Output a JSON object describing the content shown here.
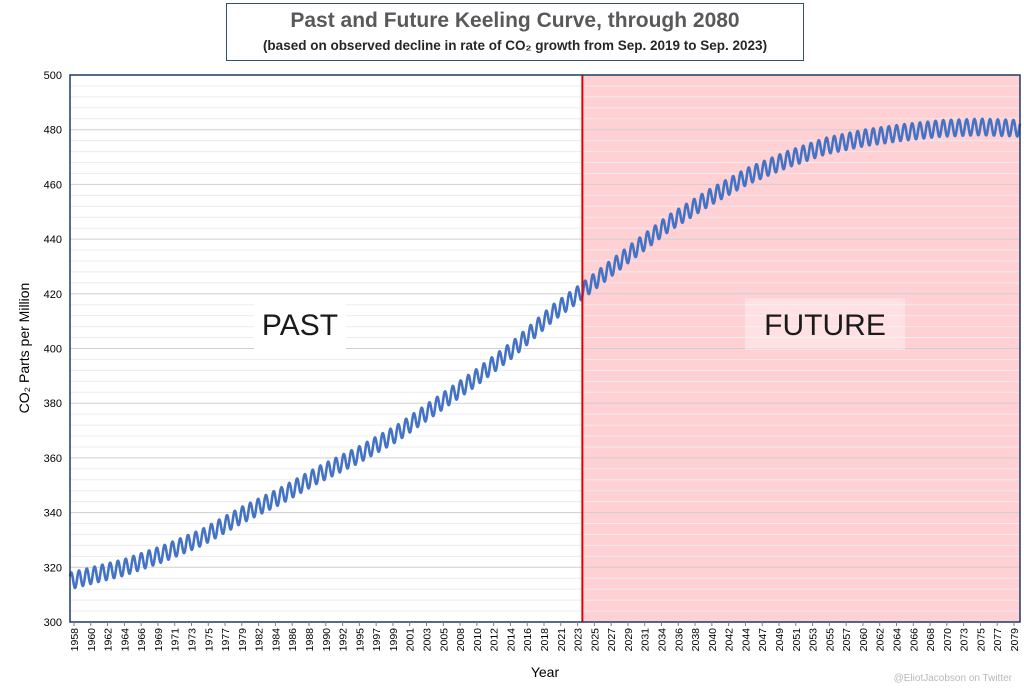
{
  "chart_data": {
    "type": "line",
    "title": "Past and Future Keeling Curve, through 2080",
    "subtitle": "(based on observed decline in rate of CO₂ growth from Sep. 2019 to Sep. 2023)",
    "xlabel": "Year",
    "ylabel": "CO₂ Parts per Million",
    "xlim": [
      1958,
      2080
    ],
    "ylim": [
      300,
      500
    ],
    "y_ticks": [
      300,
      320,
      340,
      360,
      380,
      400,
      420,
      440,
      460,
      480,
      500
    ],
    "x_tick_labels": [
      "1958",
      "1960",
      "1962",
      "1964",
      "1966",
      "1969",
      "1971",
      "1973",
      "1975",
      "1977",
      "1979",
      "1982",
      "1984",
      "1986",
      "1988",
      "1990",
      "1992",
      "1995",
      "1997",
      "1999",
      "2001",
      "2003",
      "2005",
      "2008",
      "2010",
      "2012",
      "2014",
      "2016",
      "2018",
      "2021",
      "2023",
      "2025",
      "2027",
      "2029",
      "2031",
      "2034",
      "2036",
      "2038",
      "2040",
      "2042",
      "2044",
      "2047",
      "2049",
      "2051",
      "2053",
      "2055",
      "2057",
      "2060",
      "2062",
      "2064",
      "2066",
      "2068",
      "2070",
      "2073",
      "2075",
      "2077",
      "2079"
    ],
    "grid": true,
    "divider_year": 2023.8,
    "series": [
      {
        "seasonal_amplitude_ppm": 3,
        "color": "#4472c4",
        "trend_points": [
          {
            "x": 1958,
            "y": 315
          },
          {
            "x": 1965,
            "y": 320
          },
          {
            "x": 1970,
            "y": 325
          },
          {
            "x": 1975,
            "y": 331
          },
          {
            "x": 1980,
            "y": 339
          },
          {
            "x": 1985,
            "y": 346
          },
          {
            "x": 1990,
            "y": 354
          },
          {
            "x": 1995,
            "y": 361
          },
          {
            "x": 2000,
            "y": 369
          },
          {
            "x": 2005,
            "y": 379
          },
          {
            "x": 2010,
            "y": 389
          },
          {
            "x": 2015,
            "y": 400
          },
          {
            "x": 2020,
            "y": 413
          },
          {
            "x": 2023.8,
            "y": 421
          },
          {
            "x": 2030,
            "y": 435
          },
          {
            "x": 2035,
            "y": 446
          },
          {
            "x": 2040,
            "y": 455
          },
          {
            "x": 2045,
            "y": 463
          },
          {
            "x": 2050,
            "y": 469
          },
          {
            "x": 2055,
            "y": 474
          },
          {
            "x": 2060,
            "y": 477
          },
          {
            "x": 2065,
            "y": 479
          },
          {
            "x": 2070,
            "y": 480.5
          },
          {
            "x": 2075,
            "y": 481
          },
          {
            "x": 2080,
            "y": 480.5
          }
        ]
      }
    ],
    "regions": [
      {
        "label": "PAST",
        "from": 1958,
        "to": 2023.8,
        "color": "#ffffff"
      },
      {
        "label": "FUTURE",
        "from": 2023.8,
        "to": 2080,
        "color": "#ffd0d4"
      }
    ]
  },
  "colors": {
    "divider": "#e00000",
    "frame": "#1f3864",
    "grid": "#d9d9d9",
    "future_fill": "#ffd0d4"
  },
  "credit": "@EliotJacobson on Twitter"
}
